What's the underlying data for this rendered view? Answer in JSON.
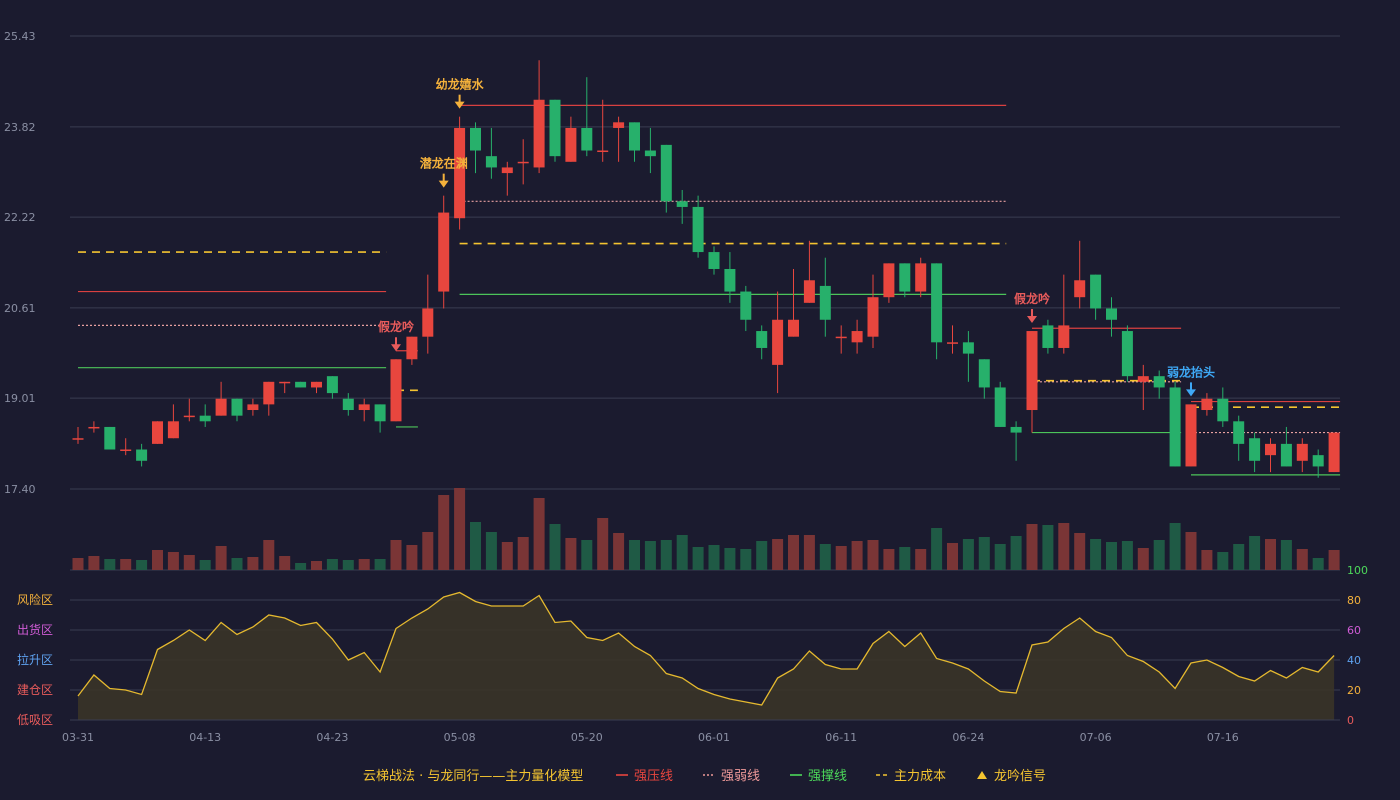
{
  "chart_data": {
    "type": "candlestick",
    "price_axis": {
      "min": 17.4,
      "max": 25.43,
      "ticks": [
        "25.43",
        "23.82",
        "22.22",
        "20.61",
        "19.01",
        "17.40"
      ]
    },
    "date_labels": [
      {
        "i": 0,
        "label": "03-31"
      },
      {
        "i": 8,
        "label": "04-13"
      },
      {
        "i": 16,
        "label": "04-23"
      },
      {
        "i": 24,
        "label": "05-08"
      },
      {
        "i": 32,
        "label": "05-20"
      },
      {
        "i": 40,
        "label": "06-01"
      },
      {
        "i": 48,
        "label": "06-11"
      },
      {
        "i": 56,
        "label": "06-24"
      },
      {
        "i": 64,
        "label": "07-06"
      },
      {
        "i": 72,
        "label": "07-16"
      }
    ],
    "candles": [
      [
        18.3,
        18.3,
        18.5,
        18.2
      ],
      [
        18.5,
        18.5,
        18.6,
        18.4
      ],
      [
        18.5,
        18.1,
        18.5,
        18.1
      ],
      [
        18.1,
        18.1,
        18.3,
        18.0
      ],
      [
        18.1,
        17.9,
        18.2,
        17.8
      ],
      [
        18.2,
        18.6,
        18.6,
        18.2
      ],
      [
        18.3,
        18.6,
        18.9,
        18.3
      ],
      [
        18.7,
        18.7,
        19.0,
        18.6
      ],
      [
        18.7,
        18.6,
        18.9,
        18.5
      ],
      [
        18.7,
        19.0,
        19.3,
        18.7
      ],
      [
        19.0,
        18.7,
        19.0,
        18.6
      ],
      [
        18.8,
        18.9,
        19.0,
        18.7
      ],
      [
        18.9,
        19.3,
        19.3,
        18.7
      ],
      [
        19.3,
        19.3,
        19.3,
        19.1
      ],
      [
        19.3,
        19.2,
        19.3,
        19.2
      ],
      [
        19.2,
        19.3,
        19.3,
        19.1
      ],
      [
        19.4,
        19.1,
        19.4,
        19.0
      ],
      [
        19.0,
        18.8,
        19.1,
        18.7
      ],
      [
        18.8,
        18.9,
        19.0,
        18.6
      ],
      [
        18.9,
        18.6,
        18.9,
        18.4
      ],
      [
        18.6,
        19.7,
        19.7,
        18.6
      ],
      [
        19.7,
        20.1,
        20.1,
        19.6
      ],
      [
        20.1,
        20.6,
        21.2,
        19.8
      ],
      [
        20.9,
        22.3,
        22.6,
        20.6
      ],
      [
        22.2,
        23.8,
        24.0,
        22.0
      ],
      [
        23.8,
        23.4,
        23.9,
        23.0
      ],
      [
        23.3,
        23.1,
        23.8,
        22.9
      ],
      [
        23.0,
        23.1,
        23.2,
        22.6
      ],
      [
        23.2,
        23.2,
        23.6,
        22.8
      ],
      [
        23.1,
        24.3,
        25.0,
        23.0
      ],
      [
        24.3,
        23.3,
        24.3,
        23.2
      ],
      [
        23.2,
        23.8,
        24.0,
        23.2
      ],
      [
        23.8,
        23.4,
        24.7,
        23.3
      ],
      [
        23.4,
        23.4,
        24.3,
        23.2
      ],
      [
        23.8,
        23.9,
        24.0,
        23.2
      ],
      [
        23.9,
        23.4,
        23.9,
        23.2
      ],
      [
        23.4,
        23.3,
        23.8,
        23.0
      ],
      [
        23.5,
        22.5,
        23.5,
        22.3
      ],
      [
        22.5,
        22.4,
        22.7,
        22.1
      ],
      [
        22.4,
        21.6,
        22.6,
        21.5
      ],
      [
        21.6,
        21.3,
        21.7,
        21.2
      ],
      [
        21.3,
        20.9,
        21.6,
        20.7
      ],
      [
        20.9,
        20.4,
        21.0,
        20.2
      ],
      [
        20.2,
        19.9,
        20.3,
        19.7
      ],
      [
        19.6,
        20.4,
        20.9,
        19.1
      ],
      [
        20.1,
        20.4,
        21.3,
        20.1
      ],
      [
        20.7,
        21.1,
        21.8,
        20.7
      ],
      [
        21.0,
        20.4,
        21.5,
        20.1
      ],
      [
        20.1,
        20.1,
        20.3,
        19.8
      ],
      [
        20.0,
        20.2,
        20.4,
        19.8
      ],
      [
        20.1,
        20.8,
        21.2,
        19.9
      ],
      [
        20.8,
        21.4,
        21.4,
        20.7
      ],
      [
        21.4,
        20.9,
        21.4,
        20.8
      ],
      [
        20.9,
        21.4,
        21.5,
        20.8
      ],
      [
        21.4,
        20.0,
        21.4,
        19.7
      ],
      [
        20.0,
        20.0,
        20.3,
        19.8
      ],
      [
        20.0,
        19.8,
        20.2,
        19.3
      ],
      [
        19.7,
        19.2,
        19.7,
        19.0
      ],
      [
        19.2,
        18.5,
        19.3,
        18.5
      ],
      [
        18.5,
        18.4,
        18.6,
        17.9
      ],
      [
        18.8,
        20.2,
        20.2,
        18.4
      ],
      [
        20.3,
        19.9,
        20.4,
        19.8
      ],
      [
        19.9,
        20.3,
        21.2,
        19.8
      ],
      [
        20.8,
        21.1,
        21.8,
        20.6
      ],
      [
        21.2,
        20.6,
        21.2,
        20.4
      ],
      [
        20.6,
        20.4,
        20.8,
        20.1
      ],
      [
        20.2,
        19.4,
        20.3,
        19.3
      ],
      [
        19.3,
        19.4,
        19.6,
        18.8
      ],
      [
        19.4,
        19.2,
        19.5,
        19.0
      ],
      [
        19.2,
        17.8,
        19.3,
        17.8
      ],
      [
        17.8,
        18.9,
        18.9,
        17.8
      ],
      [
        18.8,
        19.0,
        19.1,
        18.7
      ],
      [
        19.0,
        18.6,
        19.2,
        18.5
      ],
      [
        18.6,
        18.2,
        18.7,
        17.9
      ],
      [
        18.3,
        17.9,
        18.4,
        17.7
      ],
      [
        18.0,
        18.2,
        18.3,
        17.7
      ],
      [
        18.2,
        17.8,
        18.5,
        17.8
      ],
      [
        17.9,
        18.2,
        18.3,
        17.7
      ],
      [
        18.0,
        17.8,
        18.1,
        17.6
      ],
      [
        17.7,
        18.4,
        18.4,
        17.7
      ]
    ],
    "volume": [
      12,
      14,
      11,
      11,
      10,
      20,
      18,
      15,
      10,
      24,
      12,
      13,
      30,
      14,
      7,
      9,
      11,
      10,
      11,
      11,
      30,
      25,
      38,
      75,
      82,
      48,
      38,
      28,
      33,
      72,
      46,
      32,
      30,
      52,
      37,
      30,
      29,
      30,
      35,
      23,
      25,
      22,
      21,
      29,
      31,
      35,
      35,
      26,
      24,
      29,
      30,
      21,
      23,
      21,
      42,
      27,
      31,
      33,
      26,
      34,
      46,
      45,
      47,
      37,
      31,
      28,
      29,
      22,
      30,
      47,
      38,
      20,
      18,
      26,
      34,
      31,
      30,
      21,
      12,
      20
    ],
    "oscillator": [
      16,
      30,
      21,
      20,
      17,
      47,
      53,
      60,
      53,
      65,
      57,
      62,
      70,
      68,
      63,
      65,
      54,
      40,
      45,
      32,
      61,
      68,
      74,
      82,
      85,
      79,
      76,
      76,
      76,
      83,
      65,
      66,
      55,
      53,
      58,
      49,
      43,
      31,
      28,
      21,
      17,
      14,
      12,
      10,
      28,
      34,
      46,
      37,
      34,
      34,
      51,
      59,
      49,
      58,
      41,
      38,
      34,
      26,
      19,
      18,
      50,
      52,
      61,
      68,
      59,
      55,
      43,
      39,
      32,
      21,
      38,
      40,
      35,
      29,
      26,
      33,
      28,
      35,
      32,
      43
    ],
    "osc_axis": {
      "min": 0,
      "max": 100,
      "ticks": [
        "100",
        "80",
        "60",
        "40",
        "20",
        "0"
      ]
    },
    "zones": [
      {
        "label": "风险区",
        "color": "#f4b13b"
      },
      {
        "label": "出货区",
        "color": "#d05cd6"
      },
      {
        "label": "拉升区",
        "color": "#5ea2f0"
      },
      {
        "label": "建仓区",
        "color": "#e85b5b"
      },
      {
        "label": "低吸区",
        "color": "#e85b5b"
      }
    ],
    "signals": [
      {
        "i": 20,
        "label": "假龙吟",
        "color": "#e85b5b"
      },
      {
        "i": 23,
        "label": "潜龙在渊",
        "color": "#f4b13b"
      },
      {
        "i": 24,
        "label": "幼龙嬉水",
        "color": "#f4b13b"
      },
      {
        "i": 60,
        "label": "假龙吟",
        "color": "#e85b5b"
      },
      {
        "i": 70,
        "label": "弱龙抬头",
        "color": "#3ea8f5"
      }
    ],
    "levels": [
      {
        "type": "strong_pressure",
        "from": 0,
        "to": 19,
        "value": 20.9
      },
      {
        "type": "weak",
        "from": 0,
        "to": 19,
        "value": 20.3
      },
      {
        "type": "strong_support",
        "from": 0,
        "to": 19,
        "value": 19.55
      },
      {
        "type": "main_cost",
        "from": 0,
        "to": 19,
        "value": 21.6
      },
      {
        "type": "strong_pressure",
        "from": 20,
        "to": 21,
        "value": 19.85
      },
      {
        "type": "strong_support",
        "from": 20,
        "to": 21,
        "value": 18.5
      },
      {
        "type": "main_cost",
        "from": 20,
        "to": 21,
        "value": 19.15
      },
      {
        "type": "strong_pressure",
        "from": 24,
        "to": 58,
        "value": 24.2
      },
      {
        "type": "weak",
        "from": 24,
        "to": 58,
        "value": 22.5
      },
      {
        "type": "main_cost",
        "from": 24,
        "to": 58,
        "value": 21.75
      },
      {
        "type": "strong_support",
        "from": 24,
        "to": 58,
        "value": 20.85
      },
      {
        "type": "strong_pressure",
        "from": 60,
        "to": 69,
        "value": 20.25
      },
      {
        "type": "weak",
        "from": 60,
        "to": 69,
        "value": 19.3
      },
      {
        "type": "main_cost",
        "from": 60,
        "to": 69,
        "value": 19.32
      },
      {
        "type": "strong_support",
        "from": 60,
        "to": 69,
        "value": 18.4
      },
      {
        "type": "strong_pressure",
        "from": 70,
        "to": 79,
        "value": 18.95
      },
      {
        "type": "weak",
        "from": 70,
        "to": 79,
        "value": 18.4
      },
      {
        "type": "main_cost",
        "from": 70,
        "to": 79,
        "value": 18.85
      },
      {
        "type": "strong_support",
        "from": 70,
        "to": 79,
        "value": 17.65
      }
    ],
    "colors": {
      "up": "#e8463e",
      "down": "#27b06b",
      "vol_up": "#7a3536",
      "vol_down": "#1f5a45",
      "strong_pressure": "#d94040",
      "weak": "#e8a0a0",
      "strong_support": "#4cc45a",
      "main_cost": "#f4c430",
      "oscillator_line": "#e5b92f",
      "oscillator_fill": "#3a3428",
      "grid": "#3a3d52"
    }
  },
  "legend": {
    "title": "云梯战法 · 与龙同行——主力量化模型",
    "items": [
      {
        "label": "强压线",
        "color": "#e8463e",
        "style": "solid"
      },
      {
        "label": "强弱线",
        "color": "#ee9999",
        "style": "dotted"
      },
      {
        "label": "强撑线",
        "color": "#4cd85a",
        "style": "solid"
      },
      {
        "label": "主力成本",
        "color": "#f4c430",
        "style": "dashed"
      },
      {
        "label": "龙吟信号",
        "color": "#f4c430",
        "style": "triangle"
      }
    ]
  }
}
